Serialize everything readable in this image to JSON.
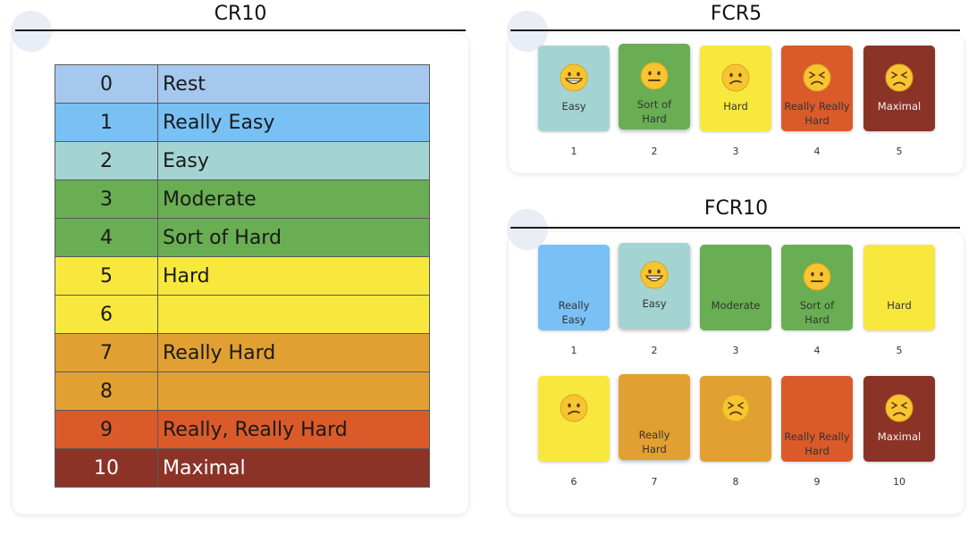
{
  "cr10": {
    "title": "CR10",
    "rows": [
      {
        "num": "0",
        "label": "Rest",
        "color": "#a6c8ef"
      },
      {
        "num": "1",
        "label": "Really Easy",
        "color": "#79c0f4"
      },
      {
        "num": "2",
        "label": "Easy",
        "color": "#a4d4d2"
      },
      {
        "num": "3",
        "label": "Moderate",
        "color": "#69ae52"
      },
      {
        "num": "4",
        "label": "Sort of Hard",
        "color": "#69ae52"
      },
      {
        "num": "5",
        "label": "Hard",
        "color": "#f8e83e"
      },
      {
        "num": "6",
        "label": "",
        "color": "#f8e83e"
      },
      {
        "num": "7",
        "label": "Really Hard",
        "color": "#e2a032"
      },
      {
        "num": "8",
        "label": "",
        "color": "#e2a032"
      },
      {
        "num": "9",
        "label": "Really, Really Hard",
        "color": "#da5a2a"
      },
      {
        "num": "10",
        "label": "Maximal",
        "color": "#8c3328"
      }
    ]
  },
  "fcr5": {
    "title": "FCR5",
    "cards": [
      {
        "num": "1",
        "line1": "Easy",
        "line2": "",
        "color": "#a4d4d2",
        "face": "grin-icon"
      },
      {
        "num": "2",
        "line1": "Sort of",
        "line2": "Hard",
        "color": "#69ae52",
        "face": "neutral-face-icon"
      },
      {
        "num": "3",
        "line1": "Hard",
        "line2": "",
        "color": "#f8e83e",
        "face": "confused-face-icon"
      },
      {
        "num": "4",
        "line1": "Really Really",
        "line2": "Hard",
        "color": "#da5a2a",
        "face": "scrunched-face-icon"
      },
      {
        "num": "5",
        "line1": "Maximal",
        "line2": "",
        "color": "#8c3328",
        "face": "persevering-face-icon"
      }
    ]
  },
  "fcr10": {
    "title": "FCR10",
    "cards": [
      {
        "num": "1",
        "line1": "Really",
        "line2": "Easy",
        "color": "#79c0f4",
        "face": ""
      },
      {
        "num": "2",
        "line1": "Easy",
        "line2": "",
        "color": "#a4d4d2",
        "face": "grin-icon"
      },
      {
        "num": "3",
        "line1": "Moderate",
        "line2": "",
        "color": "#69ae52",
        "face": ""
      },
      {
        "num": "4",
        "line1": "Sort of",
        "line2": "Hard",
        "color": "#69ae52",
        "face": "neutral-face-icon"
      },
      {
        "num": "5",
        "line1": "Hard",
        "line2": "",
        "color": "#f8e83e",
        "face": ""
      },
      {
        "num": "6",
        "line1": "",
        "line2": "",
        "color": "#f8e83e",
        "face": "confused-face-icon"
      },
      {
        "num": "7",
        "line1": "Really",
        "line2": "Hard",
        "color": "#e2a032",
        "face": ""
      },
      {
        "num": "8",
        "line1": "",
        "line2": "",
        "color": "#e2a032",
        "face": "scrunched-face-icon"
      },
      {
        "num": "9",
        "line1": "Really Really",
        "line2": "Hard",
        "color": "#da5a2a",
        "face": ""
      },
      {
        "num": "10",
        "line1": "Maximal",
        "line2": "",
        "color": "#8c3328",
        "face": "persevering-face-icon"
      }
    ]
  }
}
